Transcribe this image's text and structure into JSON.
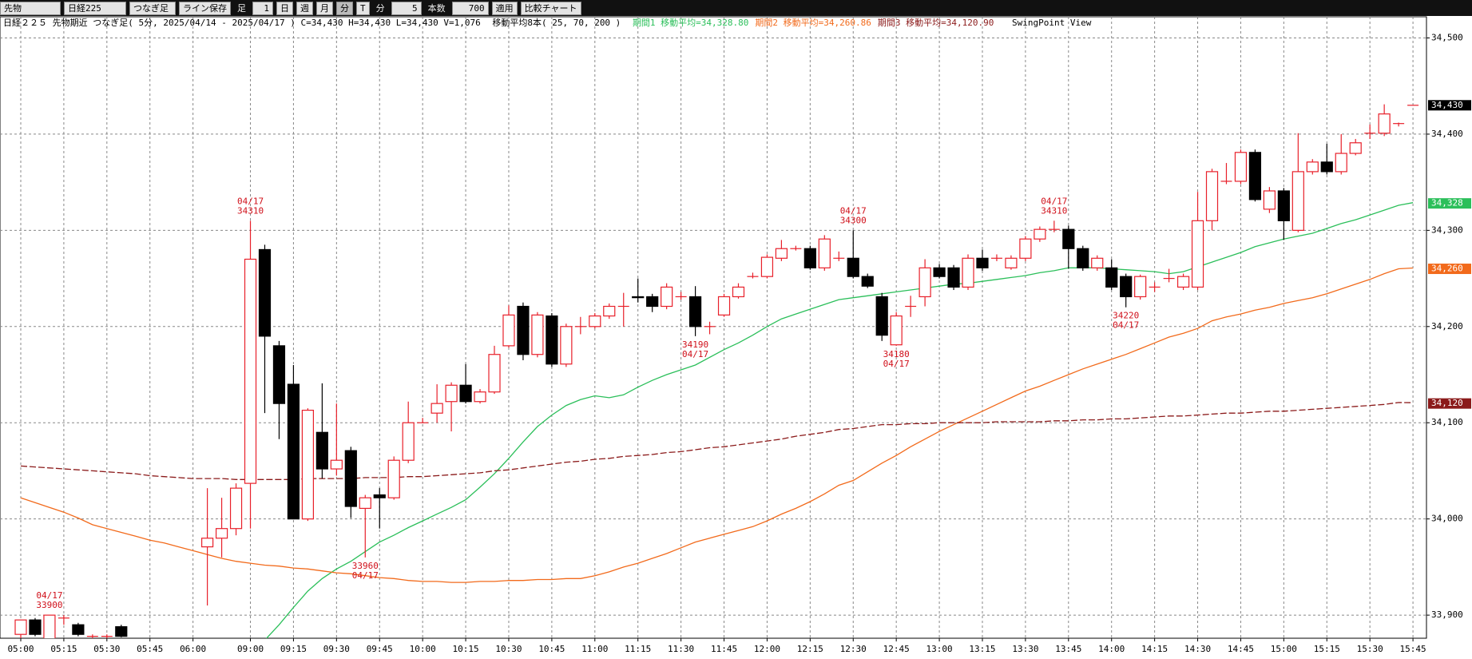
{
  "toolbar": {
    "market": "先物",
    "symbol": "日経225",
    "kind": "つなぎ足",
    "save": "ライン保存",
    "ashi": "足",
    "ashi_value": "1",
    "day": "日",
    "week": "週",
    "month": "月",
    "minute": "分",
    "tick": "T",
    "unit": "分",
    "unit_value": "5",
    "count_label": "本数",
    "count_value": "700",
    "apply": "適用",
    "compare": "比較チャート"
  },
  "header": {
    "info": "日経２２５ 先物期近 つなぎ足( 5分, 2025/04/14 - 2025/04/17 )  C=34,430 H=34,430 L=34,430 V=1,076",
    "ma": "移動平均8本( 25, 70, 200 )",
    "view": "SwingPoint View"
  },
  "chart_data": {
    "type": "candlestick",
    "categories": [
      "05:00",
      null,
      null,
      "05:15",
      null,
      null,
      "05:30",
      null,
      null,
      "05:45",
      null,
      null,
      "06:00",
      null,
      null,
      null,
      "09:00",
      null,
      null,
      "09:15",
      null,
      null,
      "09:30",
      null,
      null,
      "09:45",
      null,
      null,
      "10:00",
      null,
      null,
      "10:15",
      null,
      null,
      "10:30",
      null,
      null,
      "10:45",
      null,
      null,
      "11:00",
      null,
      null,
      "11:15",
      null,
      null,
      "11:30",
      null,
      null,
      "11:45",
      null,
      null,
      "12:00",
      null,
      null,
      "12:15",
      null,
      null,
      "12:30",
      null,
      null,
      "12:45",
      null,
      null,
      "13:00",
      null,
      null,
      "13:15",
      null,
      null,
      "13:30",
      null,
      null,
      "13:45",
      null,
      null,
      "14:00",
      null,
      null,
      "14:15",
      null,
      null,
      "14:30",
      null,
      null,
      "14:45",
      null,
      null,
      "15:00",
      null,
      null,
      "15:15",
      null,
      null,
      "15:30",
      null,
      null,
      "15:45"
    ],
    "candles": {
      "open": [
        33880,
        33895,
        33875,
        33897,
        33890,
        33878,
        33878,
        33888,
        null,
        null,
        null,
        null,
        null,
        33971,
        33980,
        33990,
        34037,
        34280,
        34180,
        34140,
        34000,
        34090,
        34052,
        34071,
        34011,
        34025,
        34022,
        34061,
        34100,
        34110,
        34122,
        34139,
        34122,
        34132,
        34180,
        34221,
        34171,
        34211,
        34161,
        34200,
        34200,
        34211,
        34221,
        34231,
        34231,
        34221,
        34231,
        34231,
        34200,
        34212,
        34231,
        34252,
        34252,
        34271,
        34281,
        34281,
        34261,
        34271,
        34271,
        34252,
        34231,
        34181,
        34221,
        34231,
        34261,
        34261,
        34241,
        34271,
        34271,
        34261,
        34271,
        34291,
        34301,
        34301,
        34281,
        34261,
        34261,
        34252,
        34231,
        34241,
        34250,
        34241,
        34241,
        34310,
        34351,
        34351,
        34381,
        34322,
        34341,
        34300,
        34361,
        34371,
        34361,
        34380,
        34401,
        34401,
        34411,
        34430
      ],
      "high": [
        33895,
        33897,
        33900,
        33900,
        33892,
        33880,
        33880,
        33890,
        null,
        null,
        null,
        null,
        null,
        34032,
        34022,
        34037,
        34310,
        34285,
        34185,
        34160,
        34115,
        34141,
        34120,
        34075,
        34025,
        34032,
        34065,
        34122,
        34105,
        34140,
        34142,
        34161,
        34135,
        34180,
        34222,
        34225,
        34215,
        34214,
        34203,
        34210,
        34214,
        34224,
        34235,
        34250,
        34234,
        34245,
        34236,
        34242,
        34205,
        34234,
        34245,
        34256,
        34275,
        34290,
        34284,
        34284,
        34295,
        34278,
        34300,
        34255,
        34235,
        34215,
        34232,
        34270,
        34265,
        34264,
        34275,
        34280,
        34275,
        34274,
        34294,
        34304,
        34310,
        34305,
        34284,
        34274,
        34270,
        34255,
        34254,
        34246,
        34260,
        34255,
        34340,
        34364,
        34370,
        34384,
        34384,
        34345,
        34344,
        34401,
        34374,
        34390,
        34400,
        34395,
        34410,
        34431,
        34412,
        34430
      ],
      "low": [
        33875,
        33878,
        33872,
        33890,
        33878,
        33876,
        33876,
        33877,
        null,
        null,
        null,
        null,
        null,
        33910,
        33960,
        33983,
        33990,
        34110,
        34083,
        34000,
        33998,
        34042,
        34045,
        34001,
        33960,
        33990,
        34020,
        34058,
        34100,
        34100,
        34091,
        34120,
        34120,
        34130,
        34178,
        34165,
        34168,
        34158,
        34158,
        34192,
        34198,
        34208,
        34200,
        34225,
        34215,
        34218,
        34228,
        34190,
        34192,
        34210,
        34229,
        34250,
        34250,
        34268,
        34279,
        34259,
        34258,
        34268,
        34250,
        34240,
        34185,
        34180,
        34210,
        34221,
        34250,
        34238,
        34238,
        34258,
        34268,
        34259,
        34268,
        34288,
        34298,
        34260,
        34258,
        34258,
        34238,
        34220,
        34228,
        34236,
        34246,
        34238,
        34238,
        34300,
        34348,
        34348,
        34330,
        34318,
        34290,
        34298,
        34358,
        34358,
        34358,
        34378,
        34395,
        34398,
        34408,
        34430
      ],
      "close": [
        33895,
        33880,
        33900,
        33897,
        33880,
        33878,
        33878,
        33878,
        null,
        null,
        null,
        null,
        null,
        33980,
        33990,
        34032,
        34270,
        34190,
        34120,
        34000,
        34113,
        34052,
        34061,
        34013,
        34022,
        34022,
        34061,
        34100,
        34100,
        34120,
        34139,
        34122,
        34132,
        34171,
        34212,
        34171,
        34212,
        34161,
        34200,
        34200,
        34211,
        34221,
        34221,
        34230,
        34221,
        34241,
        34231,
        34200,
        34200,
        34231,
        34241,
        34252,
        34272,
        34281,
        34281,
        34261,
        34291,
        34271,
        34252,
        34242,
        34191,
        34211,
        34221,
        34261,
        34252,
        34241,
        34271,
        34261,
        34271,
        34271,
        34291,
        34301,
        34301,
        34281,
        34261,
        34271,
        34241,
        34231,
        34252,
        34241,
        34250,
        34252,
        34310,
        34361,
        34351,
        34381,
        34332,
        34341,
        34310,
        34361,
        34371,
        34361,
        34380,
        34391,
        34401,
        34421,
        34411,
        34430
      ],
      "up_color": "#e8202a",
      "down_color": "#000000"
    },
    "series": [
      {
        "name": "期間1 移動平均=34,328.80",
        "color": "#2bbf5a",
        "dashed": false,
        "tag": {
          "value": 34328,
          "label": "34,328"
        },
        "values": [
          null,
          null,
          null,
          null,
          null,
          null,
          null,
          null,
          null,
          null,
          null,
          null,
          null,
          null,
          null,
          null,
          null,
          33874,
          33890,
          33908,
          33925,
          33938,
          33948,
          33956,
          33966,
          33976,
          33983,
          33991,
          33998,
          34005,
          34012,
          34020,
          34033,
          34047,
          34063,
          34080,
          34096,
          34108,
          34118,
          34124,
          34128,
          34126,
          34129,
          34137,
          34144,
          34150,
          34155,
          34160,
          34168,
          34176,
          34183,
          34191,
          34200,
          34208,
          34213,
          34218,
          34223,
          34228,
          34230,
          34232,
          34234,
          34236,
          34238,
          34240,
          34242,
          34244,
          34245,
          34247,
          34249,
          34251,
          34253,
          34256,
          34258,
          34261,
          34261,
          34261,
          34260,
          34259,
          34258,
          34257,
          34255,
          34257,
          34262,
          34267,
          34272,
          34277,
          34283,
          34287,
          34291,
          34294,
          34297,
          34302,
          34307,
          34311,
          34316,
          34321,
          34326,
          34328.8
        ]
      },
      {
        "name": "期間2 移動平均=34,260.86",
        "color": "#f26a1b",
        "dashed": false,
        "tag": {
          "value": 34260,
          "label": "34,260"
        },
        "values": [
          34022,
          34017,
          34012,
          34007,
          34001,
          33994,
          33990,
          33986,
          33982,
          33978,
          33975,
          33971,
          33967,
          33963,
          33959,
          33956,
          33954,
          33952,
          33951,
          33949,
          33948,
          33946,
          33944,
          33943,
          33941,
          33939,
          33938,
          33936,
          33935,
          33935,
          33934,
          33934,
          33935,
          33935,
          33936,
          33936,
          33937,
          33937,
          33938,
          33938,
          33941,
          33945,
          33950,
          33954,
          33959,
          33964,
          33970,
          33976,
          33980,
          33984,
          33988,
          33992,
          33998,
          34005,
          34011,
          34018,
          34026,
          34035,
          34040,
          34049,
          34058,
          34066,
          34075,
          34083,
          34091,
          34098,
          34105,
          34112,
          34119,
          34126,
          34133,
          34138,
          34144,
          34150,
          34156,
          34161,
          34166,
          34171,
          34177,
          34183,
          34189,
          34193,
          34198,
          34206,
          34210,
          34213,
          34217,
          34220,
          34224,
          34227,
          34230,
          34234,
          34239,
          34244,
          34249,
          34255,
          34260,
          34260.86
        ]
      },
      {
        "name": "期間3 移動平均=34,120.90",
        "color": "#8b1a1a",
        "dashed": true,
        "tag": {
          "value": 34120,
          "label": "34,120"
        },
        "values": [
          34055,
          34054,
          34053,
          34052,
          34051,
          34050,
          34049,
          34048,
          34047,
          34045,
          34044,
          34043,
          34042,
          34042,
          34042,
          34041,
          34041,
          34041,
          34041,
          34041,
          34042,
          34042,
          34042,
          34042,
          34043,
          34043,
          34043,
          34044,
          34044,
          34045,
          34046,
          34047,
          34048,
          34050,
          34051,
          34053,
          34055,
          34057,
          34059,
          34060,
          34062,
          34063,
          34065,
          34066,
          34067,
          34069,
          34070,
          34072,
          34074,
          34075,
          34077,
          34079,
          34081,
          34083,
          34086,
          34088,
          34090,
          34093,
          34094,
          34096,
          34098,
          34098,
          34099,
          34099,
          34100,
          34100,
          34100,
          34100,
          34101,
          34101,
          34101,
          34101,
          34102,
          34102,
          34103,
          34103,
          34104,
          34104,
          34105,
          34106,
          34107,
          34107,
          34108,
          34109,
          34110,
          34110,
          34111,
          34112,
          34112,
          34113,
          34114,
          34115,
          34116,
          34117,
          34118,
          34119,
          34121,
          34120.9
        ]
      }
    ],
    "last_tag": {
      "value": 34430,
      "label": "34,430"
    },
    "annotations": [
      {
        "date": "04/17",
        "price": 33900,
        "kind": "high"
      },
      {
        "date": "04/17",
        "price": 34310,
        "kind": "high"
      },
      {
        "date": "04/17",
        "price": 33960,
        "kind": "low"
      },
      {
        "date": "04/17",
        "price": 34190,
        "kind": "low"
      },
      {
        "date": "04/17",
        "price": 34300,
        "kind": "high"
      },
      {
        "date": "04/17",
        "price": 34180,
        "kind": "low"
      },
      {
        "date": "04/17",
        "price": 34310,
        "kind": "high"
      },
      {
        "date": "04/17",
        "price": 34220,
        "kind": "low"
      }
    ],
    "ylim": [
      33876,
      34522
    ],
    "yticks": [
      {
        "value": 33900,
        "label": "33,900"
      },
      {
        "value": 34000,
        "label": "34,000"
      },
      {
        "value": 34100,
        "label": "34,100"
      },
      {
        "value": 34200,
        "label": "34,200"
      },
      {
        "value": 34300,
        "label": "34,300"
      },
      {
        "value": 34400,
        "label": "34,400"
      },
      {
        "value": 34500,
        "label": "34,500"
      }
    ],
    "grid": true
  }
}
